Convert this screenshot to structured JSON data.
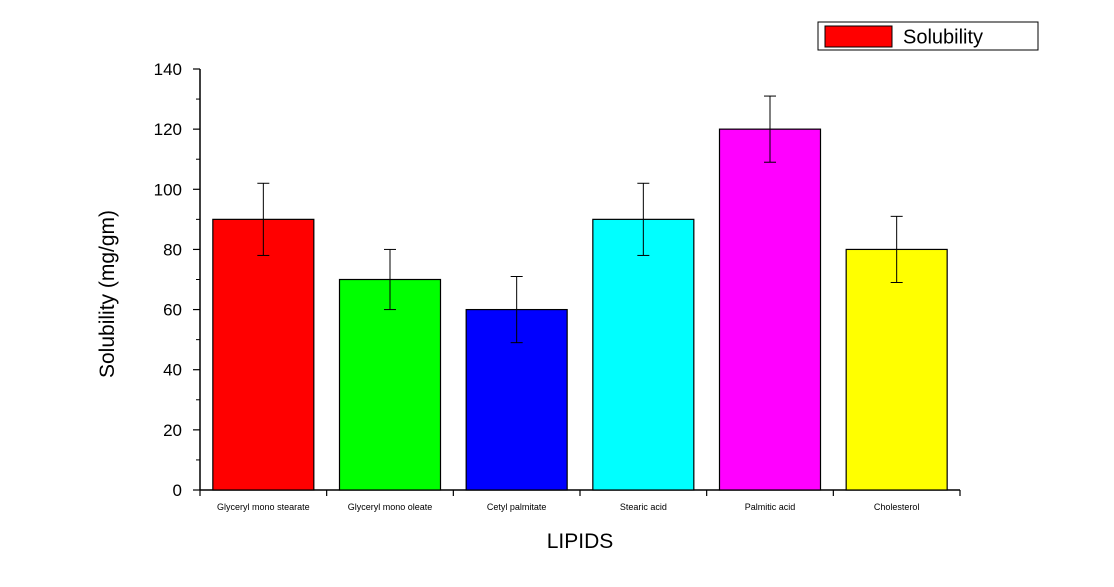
{
  "chart_data": {
    "type": "bar",
    "categories": [
      "Glyceryl mono stearate",
      "Glyceryl mono oleate",
      "Cetyl palmitate",
      "Stearic acid",
      "Palmitic acid",
      "Cholesterol"
    ],
    "values": [
      90,
      70,
      60,
      90,
      120,
      80
    ],
    "error_low": [
      78,
      60,
      49,
      78,
      109,
      69
    ],
    "error_high": [
      102,
      80,
      71,
      102,
      131,
      91
    ],
    "colors": [
      "#ff0000",
      "#00ff00",
      "#0000ff",
      "#00ffff",
      "#ff00ff",
      "#ffff00"
    ],
    "xlabel": "LIPIDS",
    "ylabel": "Solubility (mg/gm)",
    "ylim": [
      0,
      140
    ],
    "yticks": [
      0,
      20,
      40,
      60,
      80,
      100,
      120,
      140
    ],
    "grid": false,
    "legend": {
      "placement": "top-right",
      "entries": [
        {
          "label": "Solubility",
          "color": "#ff0000"
        }
      ]
    }
  }
}
